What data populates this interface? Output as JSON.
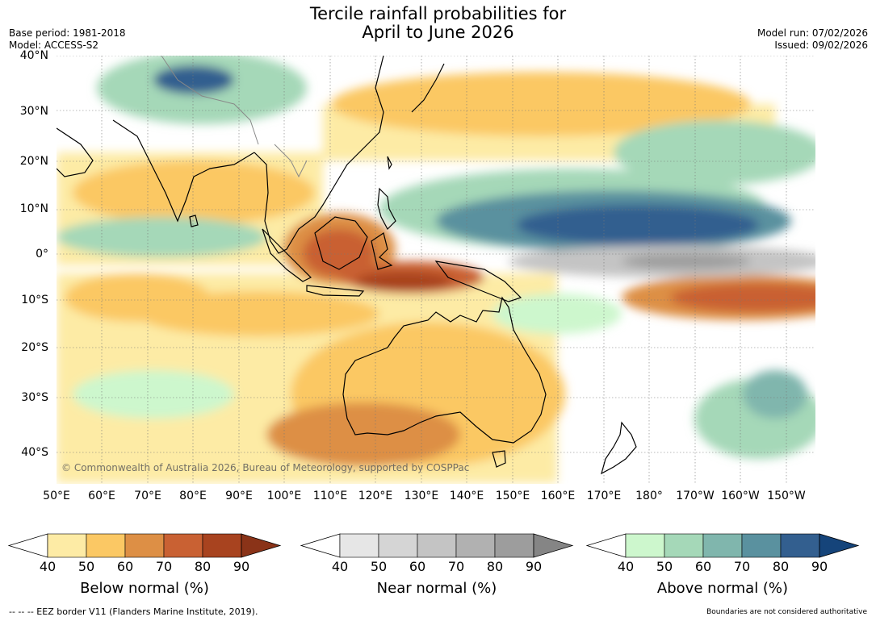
{
  "title": {
    "line1": "Tercile rainfall probabilities for",
    "line2": "April to June 2026"
  },
  "meta_left": {
    "base_period": "Base period: 1981-2018",
    "model": "Model: ACCESS-S2"
  },
  "meta_right": {
    "model_run": "Model run: 07/02/2026",
    "issued": "Issued: 09/02/2026"
  },
  "lat_labels": [
    "40°N",
    "30°N",
    "20°N",
    "10°N",
    "0°",
    "10°S",
    "20°S",
    "30°S",
    "40°S"
  ],
  "lon_labels": [
    "50°E",
    "60°E",
    "70°E",
    "80°E",
    "90°E",
    "100°E",
    "110°E",
    "120°E",
    "130°E",
    "140°E",
    "150°E",
    "160°E",
    "170°E",
    "180°",
    "170°W",
    "160°W",
    "150°W"
  ],
  "credit": "© Commonwealth of Australia 2026, Bureau of Meteorology, supported by COSPPac",
  "colorbars": [
    {
      "title": "Below normal (%)",
      "ticks": [
        "40",
        "50",
        "60",
        "70",
        "80",
        "90"
      ],
      "colors": [
        "#fdeba5",
        "#fbc864",
        "#dd8f45",
        "#c96133",
        "#a8431f",
        "#8a3318"
      ]
    },
    {
      "title": "Near normal (%)",
      "ticks": [
        "40",
        "50",
        "60",
        "70",
        "80",
        "90"
      ],
      "colors": [
        "#e6e6e6",
        "#d5d5d5",
        "#c4c4c4",
        "#b1b1b1",
        "#9d9d9d",
        "#858585"
      ]
    },
    {
      "title": "Above normal (%)",
      "ticks": [
        "40",
        "50",
        "60",
        "70",
        "80",
        "90"
      ],
      "colors": [
        "#cdf7cd",
        "#a5d8b8",
        "#80b6ad",
        "#5a919f",
        "#335f8f",
        "#15447a"
      ]
    }
  ],
  "footer": {
    "left": "--  --  -- EEZ border V11 (Flanders Marine Institute, 2019).",
    "right": "Boundaries are not considered authoritative"
  }
}
